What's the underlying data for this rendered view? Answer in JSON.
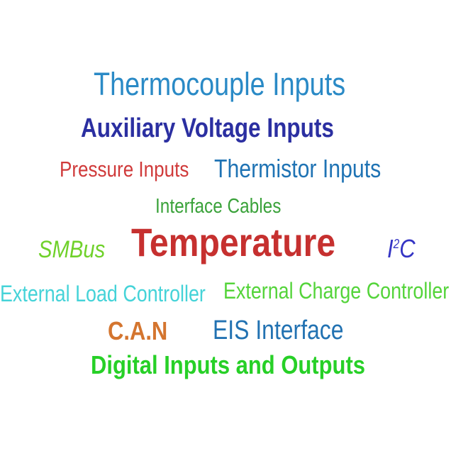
{
  "words": [
    {
      "id": "thermocouple",
      "text": "Thermocouple Inputs",
      "color": "#2a8ac6"
    },
    {
      "id": "auxiliary",
      "text": "Auxiliary Voltage Inputs",
      "color": "#2b2fa1"
    },
    {
      "id": "pressure",
      "text": "Pressure Inputs",
      "color": "#d03a3a"
    },
    {
      "id": "thermistor",
      "text": "Thermistor Inputs",
      "color": "#1f73b4"
    },
    {
      "id": "interface",
      "text": "Interface Cables",
      "color": "#3aa23a"
    },
    {
      "id": "smbus",
      "text": "SMBus",
      "color": "#6fd12a"
    },
    {
      "id": "temperature",
      "text": "Temperature",
      "color": "#c6302f"
    },
    {
      "id": "i2c",
      "text_main": "I",
      "text_sup": "2",
      "text_end": "C",
      "color": "#3434c4"
    },
    {
      "id": "extload",
      "text": "External Load Controller",
      "color": "#45d3d8"
    },
    {
      "id": "extcharge",
      "text": "External Charge Controller",
      "color": "#54d43a"
    },
    {
      "id": "can",
      "text": "C.A.N",
      "color": "#d4752f"
    },
    {
      "id": "eis",
      "text": "EIS Interface",
      "color": "#2272b2"
    },
    {
      "id": "digital",
      "text": "Digital Inputs and Outputs",
      "color": "#27d027"
    }
  ]
}
